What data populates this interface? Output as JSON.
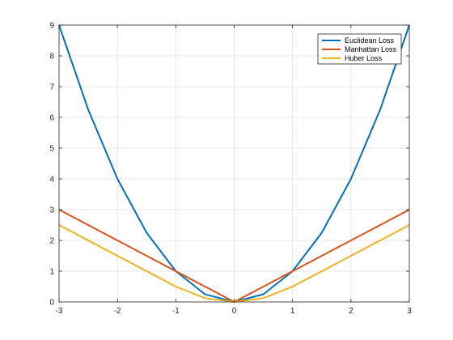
{
  "chart_data": {
    "type": "line",
    "title": "",
    "xlabel": "",
    "ylabel": "",
    "xlim": [
      -3,
      3
    ],
    "ylim": [
      0,
      9
    ],
    "xticks": [
      -3,
      -2,
      -1,
      0,
      1,
      2,
      3
    ],
    "yticks": [
      0,
      1,
      2,
      3,
      4,
      5,
      6,
      7,
      8,
      9
    ],
    "grid": true,
    "legend_position": "top-right",
    "x": [
      -3,
      -2.5,
      -2,
      -1.5,
      -1,
      -0.5,
      0,
      0.5,
      1,
      1.5,
      2,
      2.5,
      3
    ],
    "series": [
      {
        "name": "Euclidean Loss",
        "color": "#0072BD",
        "values": [
          9,
          6.25,
          4,
          2.25,
          1,
          0.25,
          0,
          0.25,
          1,
          2.25,
          4,
          6.25,
          9
        ]
      },
      {
        "name": "Manhattan Loss",
        "color": "#D95319",
        "values": [
          3,
          2.5,
          2,
          1.5,
          1,
          0.5,
          0,
          0.5,
          1,
          1.5,
          2,
          2.5,
          3
        ]
      },
      {
        "name": "Huber Loss",
        "color": "#EDB120",
        "values": [
          2.5,
          2,
          1.5,
          1,
          0.5,
          0.125,
          0,
          0.125,
          0.5,
          1,
          1.5,
          2,
          2.5
        ]
      }
    ]
  }
}
